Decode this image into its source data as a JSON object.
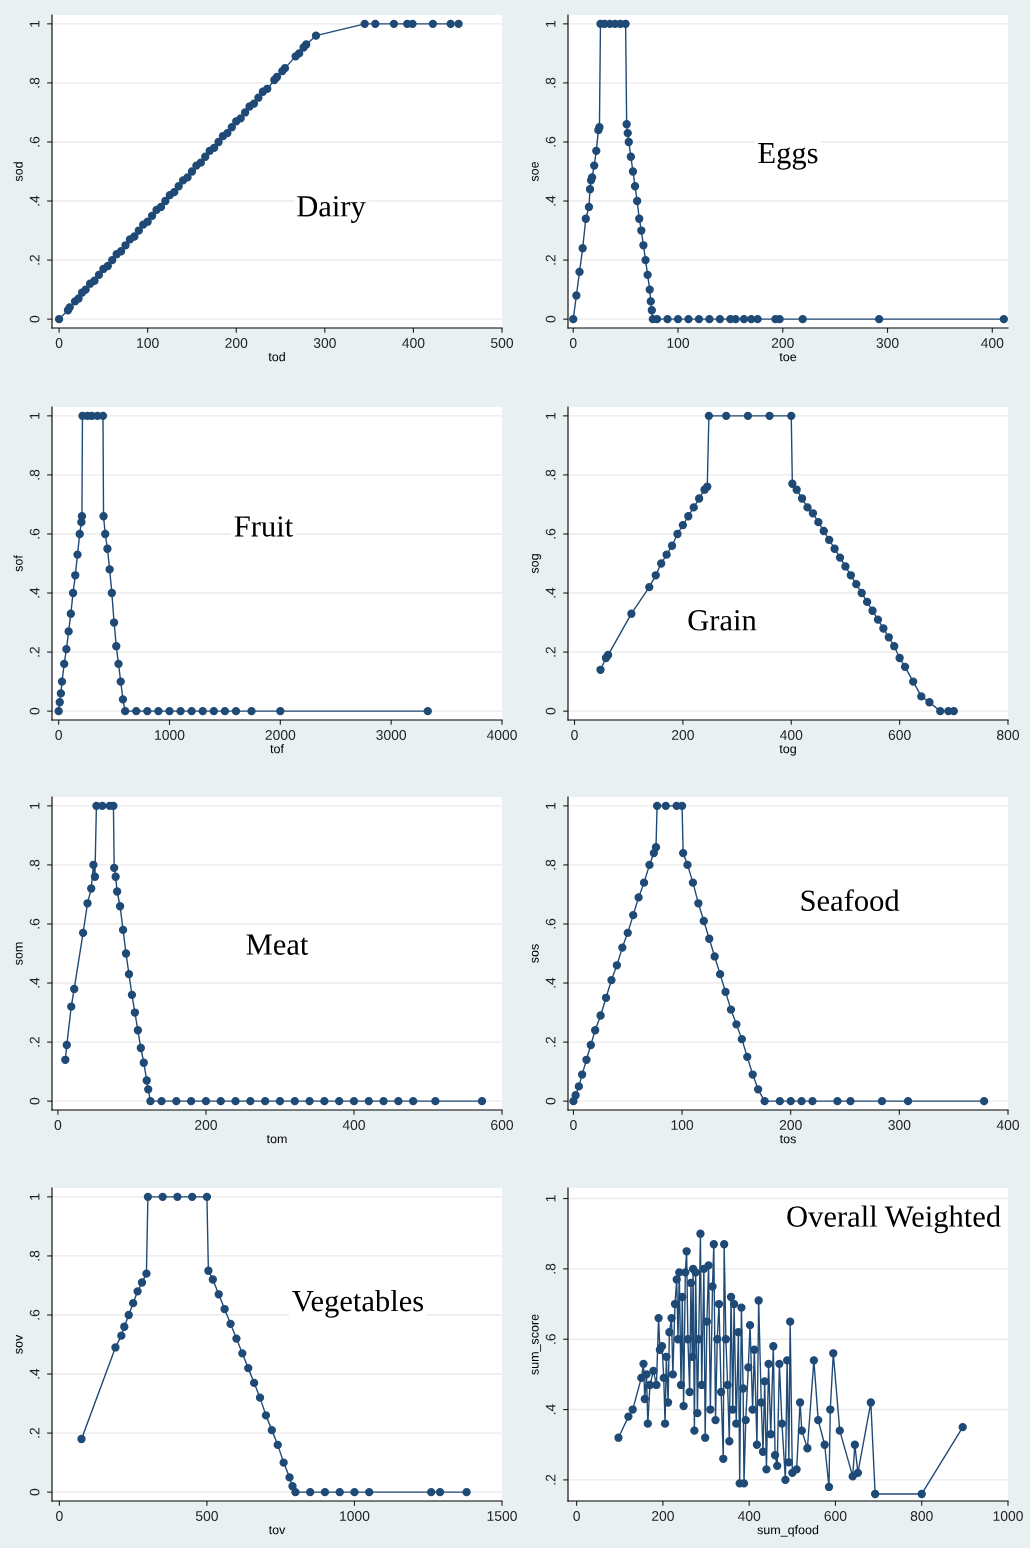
{
  "chart_data": [
    {
      "type": "line",
      "title": "Dairy",
      "xlabel": "tod",
      "ylabel": "sod",
      "marker": "circle",
      "line_style": "solid",
      "grid": "y",
      "color": "#1f4a76",
      "x": [
        0,
        10,
        12,
        18,
        22,
        26,
        30,
        35,
        40,
        45,
        50,
        55,
        60,
        65,
        70,
        75,
        80,
        85,
        90,
        95,
        100,
        105,
        110,
        115,
        120,
        125,
        130,
        135,
        140,
        145,
        150,
        155,
        160,
        165,
        170,
        175,
        180,
        185,
        190,
        195,
        200,
        205,
        210,
        215,
        220,
        225,
        230,
        235,
        243,
        246,
        252,
        255,
        267,
        271,
        276,
        279,
        290,
        345,
        357,
        378,
        393,
        399,
        422,
        442,
        451
      ],
      "values": [
        0,
        0.03,
        0.04,
        0.06,
        0.07,
        0.09,
        0.1,
        0.12,
        0.13,
        0.15,
        0.17,
        0.18,
        0.2,
        0.22,
        0.23,
        0.25,
        0.27,
        0.28,
        0.3,
        0.32,
        0.33,
        0.35,
        0.37,
        0.38,
        0.4,
        0.42,
        0.43,
        0.45,
        0.47,
        0.48,
        0.5,
        0.52,
        0.53,
        0.55,
        0.57,
        0.58,
        0.6,
        0.62,
        0.63,
        0.65,
        0.67,
        0.68,
        0.7,
        0.72,
        0.73,
        0.75,
        0.77,
        0.78,
        0.81,
        0.82,
        0.84,
        0.85,
        0.89,
        0.9,
        0.92,
        0.93,
        0.96,
        1,
        1,
        1,
        1,
        1,
        1,
        1,
        1
      ],
      "xlim": [
        -8,
        500
      ],
      "xticks": [
        0,
        100,
        200,
        300,
        400,
        500
      ],
      "ylim": [
        -0.03,
        1.03
      ],
      "yticks": [
        {
          "value": 0,
          "label": "0"
        },
        {
          "value": 0.2,
          "label": ".2"
        },
        {
          "value": 0.4,
          "label": ".4"
        },
        {
          "value": 0.6,
          "label": ".6"
        },
        {
          "value": 0.8,
          "label": ".8"
        },
        {
          "value": 1,
          "label": "1"
        }
      ]
    },
    {
      "type": "line",
      "title": "Eggs",
      "xlabel": "toe",
      "ylabel": "soe",
      "marker": "circle",
      "line_style": "solid",
      "grid": "y",
      "color": "#1f4a76",
      "x": [
        0,
        3,
        6,
        9,
        12,
        15,
        16,
        17,
        18,
        20,
        22,
        24,
        25,
        26,
        30,
        35,
        40,
        45,
        50,
        51,
        52,
        53,
        55,
        57,
        59,
        61,
        63,
        65,
        67,
        69,
        71,
        73,
        74,
        75,
        76,
        80,
        90,
        100,
        110,
        120,
        130,
        140,
        150,
        155,
        163,
        170,
        176,
        193,
        197,
        219,
        292,
        411
      ],
      "values": [
        0,
        0.08,
        0.16,
        0.24,
        0.34,
        0.38,
        0.44,
        0.47,
        0.48,
        0.52,
        0.57,
        0.64,
        0.65,
        1,
        1,
        1,
        1,
        1,
        1,
        0.66,
        0.63,
        0.6,
        0.55,
        0.5,
        0.45,
        0.4,
        0.34,
        0.3,
        0.25,
        0.2,
        0.15,
        0.1,
        0.06,
        0.03,
        0,
        0,
        0,
        0,
        0,
        0,
        0,
        0,
        0,
        0,
        0,
        0,
        0,
        0,
        0,
        0,
        0,
        0
      ],
      "xlim": [
        -5,
        415
      ],
      "xticks": [
        0,
        100,
        200,
        300,
        400
      ],
      "ylim": [
        -0.03,
        1.03
      ],
      "yticks": [
        {
          "value": 0,
          "label": "0"
        },
        {
          "value": 0.2,
          "label": ".2"
        },
        {
          "value": 0.4,
          "label": ".4"
        },
        {
          "value": 0.6,
          "label": ".6"
        },
        {
          "value": 0.8,
          "label": ".8"
        },
        {
          "value": 1,
          "label": "1"
        }
      ]
    },
    {
      "type": "line",
      "title": "Fruit",
      "xlabel": "tof",
      "ylabel": "sof",
      "marker": "circle",
      "line_style": "solid",
      "grid": "y",
      "color": "#1f4a76",
      "x": [
        0,
        10,
        20,
        30,
        50,
        70,
        90,
        110,
        130,
        150,
        170,
        190,
        205,
        210,
        215,
        260,
        300,
        350,
        400,
        405,
        420,
        440,
        460,
        480,
        500,
        520,
        540,
        560,
        580,
        600,
        700,
        800,
        900,
        1000,
        1100,
        1200,
        1300,
        1400,
        1500,
        1600,
        1740,
        2000,
        3330
      ],
      "values": [
        0,
        0.03,
        0.06,
        0.1,
        0.16,
        0.21,
        0.27,
        0.33,
        0.4,
        0.46,
        0.53,
        0.6,
        0.64,
        0.66,
        1,
        1,
        1,
        1,
        1,
        0.66,
        0.6,
        0.55,
        0.48,
        0.4,
        0.3,
        0.22,
        0.16,
        0.1,
        0.04,
        0,
        0,
        0,
        0,
        0,
        0,
        0,
        0,
        0,
        0,
        0,
        0,
        0,
        0
      ],
      "xlim": [
        -60,
        4000
      ],
      "xticks": [
        0,
        1000,
        2000,
        3000,
        4000
      ],
      "ylim": [
        -0.03,
        1.03
      ],
      "yticks": [
        {
          "value": 0,
          "label": "0"
        },
        {
          "value": 0.2,
          "label": ".2"
        },
        {
          "value": 0.4,
          "label": ".4"
        },
        {
          "value": 0.6,
          "label": ".6"
        },
        {
          "value": 0.8,
          "label": ".8"
        },
        {
          "value": 1,
          "label": "1"
        }
      ]
    },
    {
      "type": "line",
      "title": "Grain",
      "xlabel": "tog",
      "ylabel": "sog",
      "marker": "circle",
      "line_style": "solid",
      "grid": "y",
      "color": "#1f4a76",
      "x": [
        48,
        58,
        62,
        105,
        138,
        150,
        160,
        170,
        180,
        190,
        200,
        210,
        220,
        230,
        240,
        245,
        248,
        280,
        320,
        360,
        400,
        402,
        410,
        420,
        430,
        440,
        450,
        460,
        470,
        480,
        490,
        500,
        510,
        520,
        530,
        540,
        550,
        560,
        570,
        580,
        590,
        600,
        610,
        625,
        640,
        655,
        675,
        690,
        700
      ],
      "values": [
        0.14,
        0.18,
        0.19,
        0.33,
        0.42,
        0.46,
        0.5,
        0.53,
        0.56,
        0.6,
        0.63,
        0.66,
        0.69,
        0.72,
        0.75,
        0.76,
        1,
        1,
        1,
        1,
        1,
        0.77,
        0.75,
        0.72,
        0.69,
        0.67,
        0.64,
        0.61,
        0.58,
        0.55,
        0.52,
        0.49,
        0.46,
        0.43,
        0.4,
        0.37,
        0.34,
        0.31,
        0.28,
        0.25,
        0.22,
        0.18,
        0.15,
        0.1,
        0.05,
        0.03,
        0,
        0,
        0
      ],
      "xlim": [
        -12,
        800
      ],
      "xticks": [
        0,
        200,
        400,
        600,
        800
      ],
      "ylim": [
        -0.03,
        1.03
      ],
      "yticks": [
        {
          "value": 0,
          "label": "0"
        },
        {
          "value": 0.2,
          "label": ".2"
        },
        {
          "value": 0.4,
          "label": ".4"
        },
        {
          "value": 0.6,
          "label": ".6"
        },
        {
          "value": 0.8,
          "label": ".8"
        },
        {
          "value": 1,
          "label": "1"
        }
      ]
    },
    {
      "type": "line",
      "title": "Meat",
      "xlabel": "tom",
      "ylabel": "som",
      "marker": "circle",
      "line_style": "solid",
      "grid": "y",
      "color": "#1f4a76",
      "x": [
        10,
        12,
        18,
        22,
        34,
        40,
        45,
        48,
        50,
        52,
        60,
        70,
        75,
        76,
        78,
        80,
        84,
        88,
        92,
        96,
        100,
        104,
        108,
        112,
        116,
        120,
        122,
        125,
        140,
        160,
        180,
        200,
        220,
        240,
        260,
        280,
        300,
        320,
        340,
        360,
        380,
        400,
        420,
        440,
        460,
        480,
        510,
        573
      ],
      "values": [
        0.14,
        0.19,
        0.32,
        0.38,
        0.57,
        0.67,
        0.72,
        0.8,
        0.76,
        1,
        1,
        1,
        1,
        0.79,
        0.76,
        0.71,
        0.66,
        0.58,
        0.5,
        0.43,
        0.36,
        0.3,
        0.24,
        0.18,
        0.13,
        0.07,
        0.04,
        0,
        0,
        0,
        0,
        0,
        0,
        0,
        0,
        0,
        0,
        0,
        0,
        0,
        0,
        0,
        0,
        0,
        0,
        0,
        0,
        0
      ],
      "xlim": [
        -8,
        600
      ],
      "xticks": [
        0,
        200,
        400,
        600
      ],
      "ylim": [
        -0.03,
        1.03
      ],
      "yticks": [
        {
          "value": 0,
          "label": "0"
        },
        {
          "value": 0.2,
          "label": ".2"
        },
        {
          "value": 0.4,
          "label": ".4"
        },
        {
          "value": 0.6,
          "label": ".6"
        },
        {
          "value": 0.8,
          "label": ".8"
        },
        {
          "value": 1,
          "label": "1"
        }
      ]
    },
    {
      "type": "line",
      "title": "Seafood",
      "xlabel": "tos",
      "ylabel": "sos",
      "marker": "circle",
      "line_style": "solid",
      "grid": "y",
      "color": "#1f4a76",
      "x": [
        0,
        2,
        5,
        8,
        12,
        16,
        20,
        25,
        30,
        35,
        40,
        45,
        50,
        55,
        60,
        65,
        70,
        74,
        76,
        77,
        85,
        95,
        100,
        101,
        105,
        110,
        115,
        120,
        125,
        130,
        135,
        140,
        145,
        150,
        155,
        160,
        165,
        170,
        176,
        190,
        200,
        210,
        220,
        243,
        255,
        284,
        308,
        378
      ],
      "values": [
        0,
        0.02,
        0.05,
        0.09,
        0.14,
        0.19,
        0.24,
        0.29,
        0.35,
        0.41,
        0.46,
        0.52,
        0.57,
        0.63,
        0.69,
        0.74,
        0.8,
        0.84,
        0.86,
        1,
        1,
        1,
        1,
        0.84,
        0.8,
        0.74,
        0.67,
        0.61,
        0.55,
        0.49,
        0.43,
        0.37,
        0.31,
        0.26,
        0.21,
        0.15,
        0.09,
        0.04,
        0,
        0,
        0,
        0,
        0,
        0,
        0,
        0,
        0,
        0
      ],
      "xlim": [
        -5,
        400
      ],
      "xticks": [
        0,
        100,
        200,
        300,
        400
      ],
      "ylim": [
        -0.03,
        1.03
      ],
      "yticks": [
        {
          "value": 0,
          "label": "0"
        },
        {
          "value": 0.2,
          "label": ".2"
        },
        {
          "value": 0.4,
          "label": ".4"
        },
        {
          "value": 0.6,
          "label": ".6"
        },
        {
          "value": 0.8,
          "label": ".8"
        },
        {
          "value": 1,
          "label": "1"
        }
      ]
    },
    {
      "type": "line",
      "title": "Vegetables",
      "xlabel": "tov",
      "ylabel": "sov",
      "marker": "circle",
      "line_style": "solid",
      "grid": "y",
      "color": "#1f4a76",
      "x": [
        75,
        190,
        210,
        220,
        235,
        250,
        265,
        280,
        295,
        300,
        350,
        400,
        450,
        500,
        505,
        520,
        540,
        560,
        580,
        600,
        620,
        640,
        660,
        680,
        700,
        720,
        740,
        760,
        780,
        790,
        800,
        850,
        900,
        950,
        1000,
        1050,
        1260,
        1290,
        1380
      ],
      "values": [
        0.18,
        0.49,
        0.53,
        0.56,
        0.6,
        0.64,
        0.68,
        0.71,
        0.74,
        1,
        1,
        1,
        1,
        1,
        0.75,
        0.72,
        0.67,
        0.62,
        0.57,
        0.52,
        0.47,
        0.42,
        0.37,
        0.32,
        0.26,
        0.21,
        0.16,
        0.1,
        0.05,
        0.02,
        0,
        0,
        0,
        0,
        0,
        0,
        0,
        0,
        0
      ],
      "xlim": [
        -25,
        1500
      ],
      "xticks": [
        0,
        500,
        1000,
        1500
      ],
      "ylim": [
        -0.03,
        1.03
      ],
      "yticks": [
        {
          "value": 0,
          "label": "0"
        },
        {
          "value": 0.2,
          "label": ".2"
        },
        {
          "value": 0.4,
          "label": ".4"
        },
        {
          "value": 0.6,
          "label": ".6"
        },
        {
          "value": 0.8,
          "label": ".8"
        },
        {
          "value": 1,
          "label": "1"
        }
      ]
    },
    {
      "type": "line",
      "title": "Overall Weighted",
      "xlabel": "sum_qfood",
      "ylabel": "sum_score",
      "marker": "circle",
      "line_style": "solid",
      "grid": "y",
      "color": "#1f4a76",
      "x": [
        97,
        120,
        130,
        150,
        155,
        158,
        162,
        165,
        170,
        178,
        185,
        190,
        193,
        198,
        202,
        205,
        208,
        212,
        215,
        220,
        223,
        228,
        232,
        235,
        238,
        242,
        245,
        248,
        252,
        255,
        258,
        262,
        265,
        268,
        270,
        273,
        276,
        280,
        283,
        287,
        290,
        295,
        298,
        302,
        306,
        310,
        315,
        318,
        322,
        326,
        330,
        335,
        340,
        342,
        346,
        350,
        354,
        358,
        362,
        365,
        370,
        375,
        378,
        382,
        386,
        388,
        392,
        398,
        402,
        408,
        412,
        418,
        422,
        428,
        432,
        436,
        440,
        445,
        450,
        456,
        460,
        465,
        470,
        476,
        484,
        488,
        492,
        495,
        500,
        510,
        518,
        522,
        535,
        550,
        560,
        575,
        585,
        588,
        595,
        610,
        640,
        645,
        652,
        682,
        692,
        800,
        895
      ],
      "values": [
        0.32,
        0.38,
        0.4,
        0.49,
        0.53,
        0.43,
        0.5,
        0.36,
        0.47,
        0.51,
        0.47,
        0.66,
        0.57,
        0.58,
        0.49,
        0.36,
        0.55,
        0.42,
        0.62,
        0.66,
        0.5,
        0.7,
        0.77,
        0.6,
        0.79,
        0.47,
        0.72,
        0.41,
        0.79,
        0.85,
        0.6,
        0.45,
        0.76,
        0.55,
        0.8,
        0.34,
        0.79,
        0.39,
        0.6,
        0.9,
        0.47,
        0.8,
        0.32,
        0.65,
        0.81,
        0.4,
        0.75,
        0.87,
        0.37,
        0.6,
        0.7,
        0.45,
        0.26,
        0.87,
        0.6,
        0.47,
        0.31,
        0.72,
        0.4,
        0.7,
        0.36,
        0.62,
        0.19,
        0.69,
        0.46,
        0.19,
        0.37,
        0.52,
        0.64,
        0.4,
        0.57,
        0.3,
        0.71,
        0.42,
        0.28,
        0.48,
        0.23,
        0.53,
        0.33,
        0.58,
        0.27,
        0.24,
        0.53,
        0.36,
        0.2,
        0.54,
        0.25,
        0.65,
        0.22,
        0.23,
        0.42,
        0.34,
        0.29,
        0.54,
        0.37,
        0.3,
        0.18,
        0.4,
        0.56,
        0.34,
        0.21,
        0.3,
        0.22,
        0.42,
        0.16,
        0.16,
        0.35
      ],
      "xlim": [
        -20,
        1000
      ],
      "xticks": [
        0,
        200,
        400,
        600,
        800,
        1000
      ],
      "ylim": [
        0.14,
        1.03
      ],
      "yticks": [
        {
          "value": 0.2,
          "label": ".2"
        },
        {
          "value": 0.4,
          "label": ".4"
        },
        {
          "value": 0.6,
          "label": ".6"
        },
        {
          "value": 0.8,
          "label": ".8"
        },
        {
          "value": 1,
          "label": "1"
        }
      ]
    }
  ]
}
